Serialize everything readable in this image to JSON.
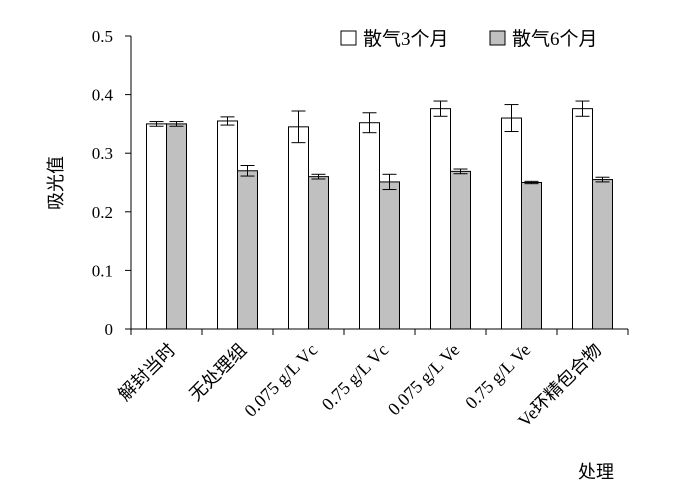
{
  "chart_data": {
    "type": "bar",
    "title": "",
    "xlabel": "处理",
    "ylabel": "吸光值",
    "ylim": [
      0,
      0.5
    ],
    "yticks": [
      "0",
      "0.1",
      "0.2",
      "0.3",
      "0.4",
      "0.5"
    ],
    "grid": false,
    "legend_position": "top-right",
    "categories": [
      "解封当时",
      "无处理组",
      "0.075 g/L Vc",
      "0.75 g/L Vc",
      "0.075 g/L Ve",
      "0.75 g/L Ve",
      "Ve环精包合物"
    ],
    "series": [
      {
        "name": "散气3个月",
        "color": "#ffffff",
        "values": [
          0.35,
          0.355,
          0.345,
          0.352,
          0.376,
          0.36,
          0.376
        ],
        "errors": [
          0.004,
          0.007,
          0.027,
          0.017,
          0.013,
          0.023,
          0.013
        ]
      },
      {
        "name": "散气6个月",
        "color": "#c0c0c0",
        "values": [
          0.35,
          0.27,
          0.26,
          0.251,
          0.269,
          0.25,
          0.255
        ],
        "errors": [
          0.004,
          0.009,
          0.004,
          0.013,
          0.004,
          0.002,
          0.004
        ]
      }
    ]
  }
}
